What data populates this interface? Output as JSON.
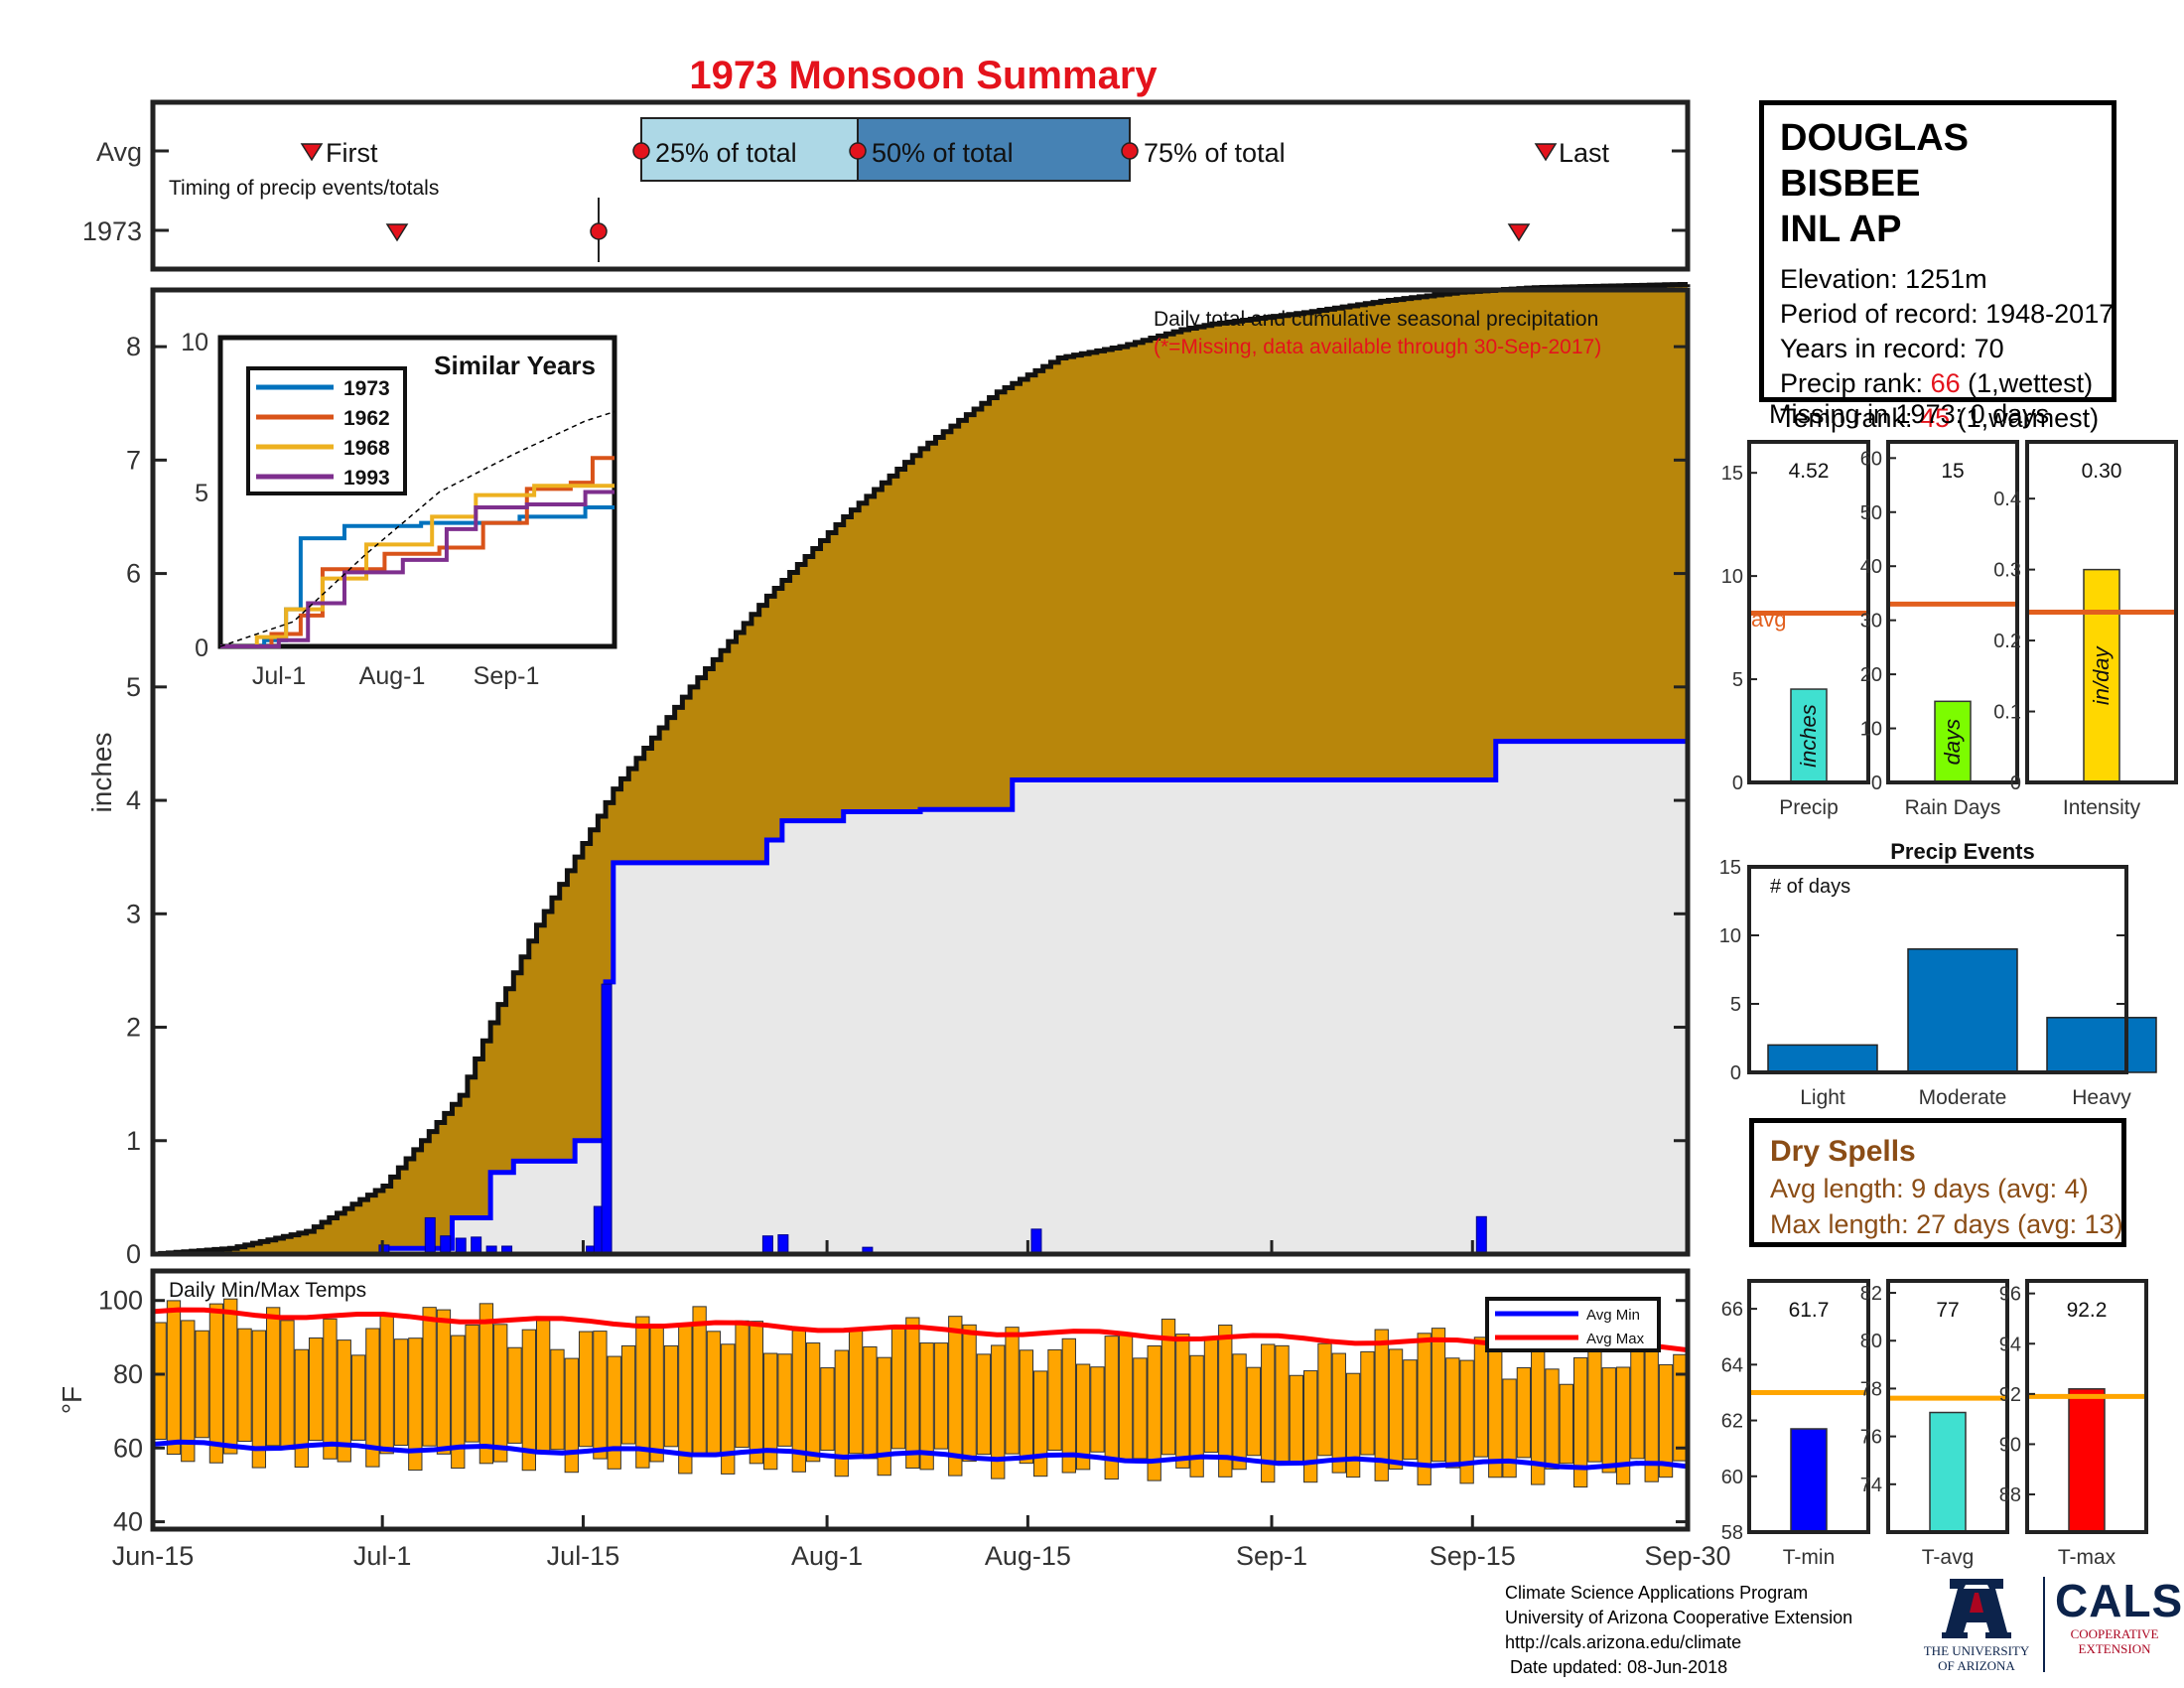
{
  "title": "1973 Monsoon Summary",
  "colors": {
    "title": "#e4131c",
    "cum_avg": "#b8860b",
    "cum_year": "#e8e8e8",
    "above_avg": "#228b22",
    "daily_bar": "#0000ff",
    "temp_bar": "#ffa500",
    "avg_min": "#0000ff",
    "avg_max": "#ff0000",
    "avg_line": "#e25f1e"
  },
  "station": {
    "name_line1": "DOUGLAS BISBEE",
    "name_line2": "INL AP",
    "elevation": "Elevation: 1251m",
    "period": "Period of record: 1948-2017",
    "years": "Years in record: 70",
    "precip_rank_label": "Precip rank:",
    "precip_rank_value": "66",
    "precip_rank_note": "(1,wettest)",
    "temp_rank_label": "Temp rank:",
    "temp_rank_value": "45",
    "temp_rank_note": "(1,warmest)",
    "missing": "Missing in 1973: 0 days"
  },
  "timing": {
    "row_avg": "Avg",
    "row_year": "1973",
    "caption": "Timing of precip events/totals",
    "first": "First",
    "last": "Last",
    "p25": "25% of total",
    "p50": "50% of total",
    "p75": "75% of total"
  },
  "main": {
    "ylabel": "inches",
    "yticks": [
      "0",
      "1",
      "2",
      "3",
      "4",
      "5",
      "6",
      "7",
      "8"
    ],
    "note1": "Daily total and cumulative seasonal precipitation",
    "note2": "(*=Missing, data available through 30-Sep-2017)"
  },
  "inset": {
    "title": "Similar Years",
    "yticks": [
      "0",
      "5",
      "10"
    ],
    "xticks": [
      "Jul-1",
      "Aug-1",
      "Sep-1"
    ],
    "legend": [
      "1973",
      "1962",
      "1968",
      "1993"
    ]
  },
  "temps": {
    "caption": "Daily Min/Max Temps",
    "ylabel": "°F",
    "yticks": [
      "40",
      "60",
      "80",
      "100"
    ],
    "legend_min": "Avg Min",
    "legend_max": "Avg Max"
  },
  "xticks": [
    "Jun-15",
    "Jul-1",
    "Jul-15",
    "Aug-1",
    "Aug-15",
    "Sep-1",
    "Sep-15",
    "Sep-30"
  ],
  "summary_bars": {
    "precip": {
      "label": "Precip",
      "value_text": "4.52",
      "unit": "inches",
      "yticks": [
        "0",
        "5",
        "10",
        "15"
      ],
      "avg_label": "avg"
    },
    "raindays": {
      "label": "Rain Days",
      "value_text": "15",
      "unit": "days",
      "yticks": [
        "0",
        "10",
        "20",
        "30",
        "40",
        "50",
        "60"
      ]
    },
    "intensity": {
      "label": "Intensity",
      "value_text": "0.30",
      "unit": "in/day",
      "yticks": [
        "0",
        "0.1",
        "0.2",
        "0.3",
        "0.4"
      ]
    }
  },
  "events": {
    "title": "Precip Events",
    "caption": "# of days",
    "yticks": [
      "0",
      "5",
      "10",
      "15"
    ],
    "labels": [
      "Light",
      "Moderate",
      "Heavy"
    ]
  },
  "dry": {
    "title": "Dry Spells",
    "avg": "Avg length: 9 days (avg: 4)",
    "max": "Max length: 27 days (avg: 13)"
  },
  "temp_bars": {
    "tmin": {
      "label": "T-min",
      "value_text": "61.7",
      "yticks": [
        "58",
        "60",
        "62",
        "64",
        "66"
      ]
    },
    "tavg": {
      "label": "T-avg",
      "value_text": "77",
      "yticks": [
        "74",
        "76",
        "78",
        "80",
        "82"
      ]
    },
    "tmax": {
      "label": "T-max",
      "value_text": "92.2",
      "yticks": [
        "88",
        "90",
        "92",
        "94",
        "96"
      ]
    }
  },
  "credits": {
    "line1": "Climate Science Applications Program",
    "line2": "University of Arizona Cooperative Extension",
    "line3": "http://cals.arizona.edu/climate",
    "line4": " Date updated: 08-Jun-2018"
  },
  "logos": {
    "ua_line1": "THE UNIVERSITY",
    "ua_line2": "OF ARIZONA",
    "cals": "CALS",
    "cals_line1": "COOPERATIVE",
    "cals_line2": "EXTENSION"
  },
  "chart_data": [
    {
      "type": "area",
      "name": "cumulative precipitation",
      "x_range": [
        "Jun-15",
        "Sep-30"
      ],
      "ylim": [
        0,
        8.5
      ],
      "avg_cumulative_knots": [
        [
          0,
          0
        ],
        [
          10,
          0.05
        ],
        [
          20,
          0.2
        ],
        [
          30,
          0.6
        ],
        [
          40,
          1.4
        ],
        [
          45,
          2.2
        ],
        [
          50,
          2.9
        ],
        [
          55,
          3.5
        ],
        [
          60,
          4.1
        ],
        [
          70,
          5.0
        ],
        [
          80,
          5.8
        ],
        [
          90,
          6.5
        ],
        [
          100,
          7.1
        ],
        [
          110,
          7.6
        ],
        [
          118,
          7.9
        ],
        [
          126,
          8.0
        ],
        [
          134,
          8.15
        ],
        [
          138,
          8.2
        ],
        [
          144,
          8.25
        ],
        [
          150,
          8.3
        ],
        [
          160,
          8.4
        ],
        [
          170,
          8.48
        ],
        [
          180,
          8.52
        ],
        [
          200,
          8.55
        ]
      ],
      "year_cumulative_steps": [
        [
          0,
          0
        ],
        [
          30,
          0.05
        ],
        [
          39,
          0.32
        ],
        [
          44,
          0.72
        ],
        [
          47,
          0.82
        ],
        [
          55,
          1.0
        ],
        [
          58,
          1.0
        ],
        [
          59,
          2.4
        ],
        [
          60,
          3.45
        ],
        [
          79,
          3.45
        ],
        [
          80,
          3.65
        ],
        [
          82,
          3.82
        ],
        [
          90,
          3.9
        ],
        [
          100,
          3.92
        ],
        [
          112,
          4.18
        ],
        [
          172,
          4.18
        ],
        [
          175,
          4.52
        ],
        [
          200,
          4.52
        ]
      ],
      "daily_bars": [
        [
          30,
          0.08
        ],
        [
          36,
          0.32
        ],
        [
          38,
          0.16
        ],
        [
          40,
          0.14
        ],
        [
          42,
          0.15
        ],
        [
          44,
          0.07
        ],
        [
          46,
          0.07
        ],
        [
          57,
          0.07
        ],
        [
          58,
          0.42
        ],
        [
          59,
          2.38
        ],
        [
          80,
          0.16
        ],
        [
          82,
          0.17
        ],
        [
          93,
          0.06
        ],
        [
          115,
          0.22
        ],
        [
          173,
          0.33
        ]
      ],
      "yticks": [
        0,
        1,
        2,
        3,
        4,
        5,
        6,
        7,
        8
      ]
    },
    {
      "type": "bar",
      "name": "daily min/max temps",
      "ylim": [
        38,
        108
      ],
      "avg_min_start": 61,
      "avg_min_end": 55,
      "avg_max_start": 97,
      "avg_max_end": 87,
      "days": 108
    },
    {
      "type": "line",
      "name": "Similar Years",
      "x_range": [
        "Jun-15",
        "Sep-30"
      ],
      "ylim": [
        0,
        10
      ],
      "series": [
        {
          "name": "1973",
          "color": "#0072bd",
          "points": [
            [
              0,
              0
            ],
            [
              12,
              0.2
            ],
            [
              18,
              1.2
            ],
            [
              22,
              3.5
            ],
            [
              34,
              3.9
            ],
            [
              55,
              4.0
            ],
            [
              82,
              4.2
            ],
            [
              100,
              4.5
            ],
            [
              108,
              4.5
            ]
          ]
        },
        {
          "name": "1962",
          "color": "#d95319",
          "points": [
            [
              0,
              0
            ],
            [
              14,
              0.4
            ],
            [
              22,
              1.0
            ],
            [
              28,
              2.5
            ],
            [
              45,
              3.0
            ],
            [
              60,
              3.2
            ],
            [
              72,
              4.0
            ],
            [
              84,
              5.1
            ],
            [
              96,
              5.3
            ],
            [
              102,
              6.1
            ],
            [
              108,
              6.1
            ]
          ]
        },
        {
          "name": "1968",
          "color": "#edb120",
          "points": [
            [
              0,
              0
            ],
            [
              10,
              0.3
            ],
            [
              18,
              1.2
            ],
            [
              28,
              2.2
            ],
            [
              40,
              3.3
            ],
            [
              58,
              4.2
            ],
            [
              70,
              4.9
            ],
            [
              86,
              5.2
            ],
            [
              108,
              5.2
            ]
          ]
        },
        {
          "name": "1993",
          "color": "#7e2f8e",
          "points": [
            [
              0,
              0
            ],
            [
              16,
              0.2
            ],
            [
              24,
              1.4
            ],
            [
              34,
              2.4
            ],
            [
              50,
              2.8
            ],
            [
              62,
              3.8
            ],
            [
              70,
              4.5
            ],
            [
              84,
              4.6
            ],
            [
              100,
              5.0
            ],
            [
              108,
              5.0
            ]
          ]
        },
        {
          "name": "",
          "color": "#000000",
          "points": [
            [
              0,
              0
            ],
            [
              20,
              0.8
            ],
            [
              40,
              3.0
            ],
            [
              60,
              5.0
            ],
            [
              80,
              6.2
            ],
            [
              100,
              7.3
            ],
            [
              108,
              7.6
            ]
          ]
        }
      ]
    },
    {
      "type": "bar",
      "name": "season totals",
      "categories": [
        "Precip",
        "Rain Days",
        "Intensity"
      ],
      "values": [
        4.52,
        15,
        0.3
      ],
      "averages": [
        8.2,
        33,
        0.24
      ],
      "colors": [
        "#40e0d0",
        "#7cfc00",
        "#ffd700"
      ]
    },
    {
      "type": "bar",
      "name": "Precip Events",
      "categories": [
        "Light",
        "Moderate",
        "Heavy"
      ],
      "values": [
        2,
        9,
        4
      ],
      "ylim": [
        0,
        15
      ],
      "color": "#0072bd"
    },
    {
      "type": "bar",
      "name": "temperature summary",
      "categories": [
        "T-min",
        "T-avg",
        "T-max"
      ],
      "values": [
        61.7,
        77,
        92.2
      ],
      "averages": [
        63,
        77.6,
        91.9
      ],
      "ylims": [
        [
          58,
          67
        ],
        [
          72,
          82.5
        ],
        [
          86.5,
          96.5
        ]
      ],
      "colors": [
        "#0000ff",
        "#40e0d0",
        "#ff0000"
      ]
    }
  ]
}
